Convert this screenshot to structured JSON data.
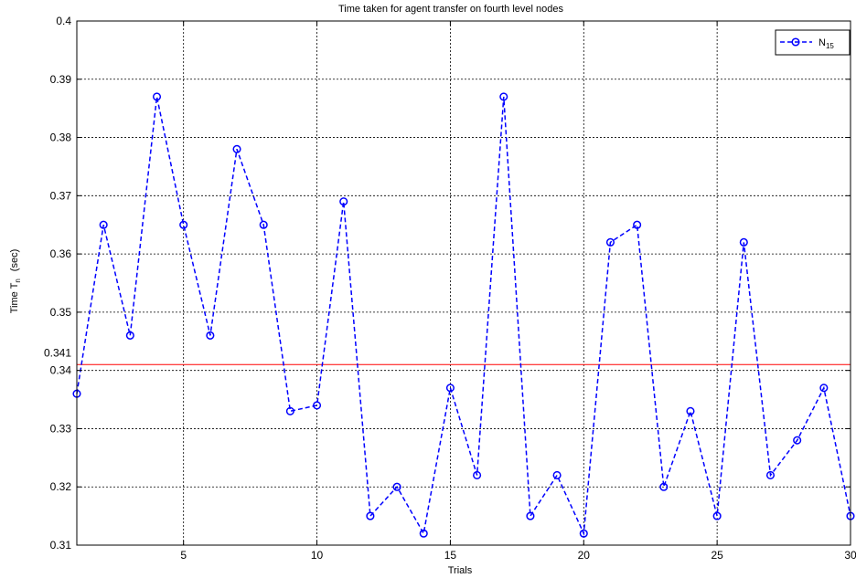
{
  "chart_data": {
    "type": "line",
    "title": "Time taken for agent transfer on fourth level nodes",
    "xlabel": "Trials",
    "ylabel": {
      "main": "Time T",
      "sub": "n",
      "unit": "(sec)"
    },
    "xlim": [
      1,
      30
    ],
    "ylim": [
      0.31,
      0.4
    ],
    "xticks": [
      5,
      10,
      15,
      20,
      25,
      30
    ],
    "yticks": [
      0.31,
      0.32,
      0.33,
      0.34,
      0.35,
      0.36,
      0.37,
      0.38,
      0.39,
      0.4
    ],
    "grid": true,
    "legend_position": "top-right",
    "series": [
      {
        "name": "N",
        "name_sub": "15",
        "color": "#0000ff",
        "line_style": "dashed",
        "marker": "circle",
        "x": [
          1,
          2,
          3,
          4,
          5,
          6,
          7,
          8,
          9,
          10,
          11,
          12,
          13,
          14,
          15,
          16,
          17,
          18,
          19,
          20,
          21,
          22,
          23,
          24,
          25,
          26,
          27,
          28,
          29,
          30
        ],
        "values": [
          0.336,
          0.365,
          0.346,
          0.387,
          0.365,
          0.346,
          0.378,
          0.365,
          0.333,
          0.334,
          0.369,
          0.315,
          0.32,
          0.312,
          0.337,
          0.322,
          0.387,
          0.315,
          0.322,
          0.312,
          0.362,
          0.365,
          0.32,
          0.333,
          0.315,
          0.362,
          0.322,
          0.328,
          0.337,
          0.315
        ]
      }
    ],
    "reference_line": {
      "value": 0.341,
      "label": "0.341",
      "color": "#ff0000"
    }
  }
}
